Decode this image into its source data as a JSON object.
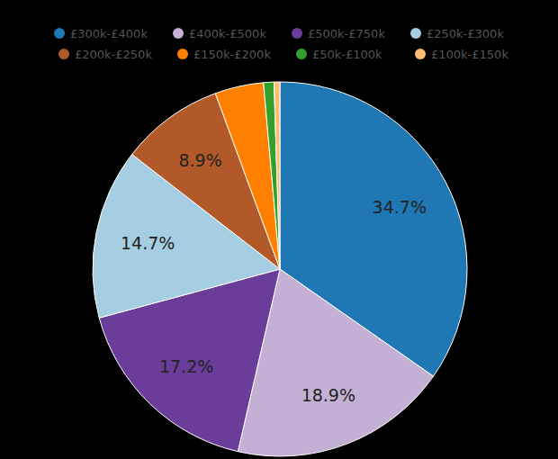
{
  "chart_data": {
    "type": "pie",
    "categories": [
      "£300k-£400k",
      "£400k-£500k",
      "£500k-£750k",
      "£250k-£300k",
      "£200k-£250k",
      "£150k-£200k",
      "£50k-£100k",
      "£100k-£150k"
    ],
    "values": [
      34.7,
      18.9,
      17.2,
      14.7,
      8.9,
      4.2,
      0.9,
      0.5
    ],
    "value_labels": [
      "34.7%",
      "18.9%",
      "17.2%",
      "14.7%",
      "8.9%",
      null,
      null,
      null
    ],
    "colors": [
      "#1f77b4",
      "#c5b0d5",
      "#6a3d9a",
      "#a6cee3",
      "#b15928",
      "#ff7f00",
      "#33a02c",
      "#fdbf6f"
    ],
    "data_labels": true,
    "legend": "top"
  }
}
